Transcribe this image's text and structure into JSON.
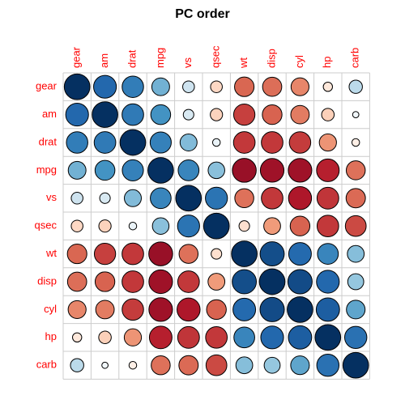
{
  "chart_data": {
    "type": "corrplot",
    "title": "PC order",
    "variables": [
      "gear",
      "am",
      "drat",
      "mpg",
      "vs",
      "qsec",
      "wt",
      "disp",
      "cyl",
      "hp",
      "carb"
    ],
    "matrix": [
      [
        1,
        0.79,
        0.7,
        0.48,
        0.21,
        -0.21,
        -0.58,
        -0.56,
        -0.49,
        -0.13,
        0.27
      ],
      [
        0.79,
        1,
        0.71,
        0.6,
        0.17,
        -0.23,
        -0.69,
        -0.59,
        -0.52,
        -0.24,
        0.06
      ],
      [
        0.7,
        0.71,
        1,
        0.68,
        0.44,
        0.09,
        -0.71,
        -0.71,
        -0.7,
        -0.45,
        -0.09
      ],
      [
        0.48,
        0.6,
        0.68,
        1,
        0.66,
        0.42,
        -0.87,
        -0.85,
        -0.85,
        -0.78,
        -0.55
      ],
      [
        0.21,
        0.17,
        0.44,
        0.66,
        1,
        0.74,
        -0.55,
        -0.71,
        -0.81,
        -0.72,
        -0.57
      ],
      [
        -0.21,
        -0.23,
        0.09,
        0.42,
        0.74,
        1,
        -0.17,
        -0.43,
        -0.59,
        -0.71,
        -0.66
      ],
      [
        -0.58,
        -0.69,
        -0.71,
        -0.87,
        -0.55,
        -0.17,
        1,
        0.89,
        0.78,
        0.66,
        0.43
      ],
      [
        -0.56,
        -0.59,
        -0.71,
        -0.85,
        -0.71,
        -0.43,
        0.89,
        1,
        0.9,
        0.79,
        0.39
      ],
      [
        -0.49,
        -0.52,
        -0.7,
        -0.85,
        -0.81,
        -0.59,
        0.78,
        0.9,
        1,
        0.83,
        0.53
      ],
      [
        -0.13,
        -0.24,
        -0.45,
        -0.78,
        -0.72,
        -0.71,
        0.66,
        0.79,
        0.83,
        1,
        0.75
      ],
      [
        0.27,
        0.06,
        -0.09,
        -0.55,
        -0.57,
        -0.66,
        0.43,
        0.39,
        0.53,
        0.75,
        1
      ]
    ],
    "clim": [
      -1,
      1
    ],
    "colors": [
      "#67001F",
      "#B2182B",
      "#D6604D",
      "#F4A582",
      "#FDDBC7",
      "#FFFFFF",
      "#D1E5F0",
      "#92C5DE",
      "#4393C3",
      "#2166AC",
      "#053061"
    ],
    "label_color": "#FF0000"
  }
}
